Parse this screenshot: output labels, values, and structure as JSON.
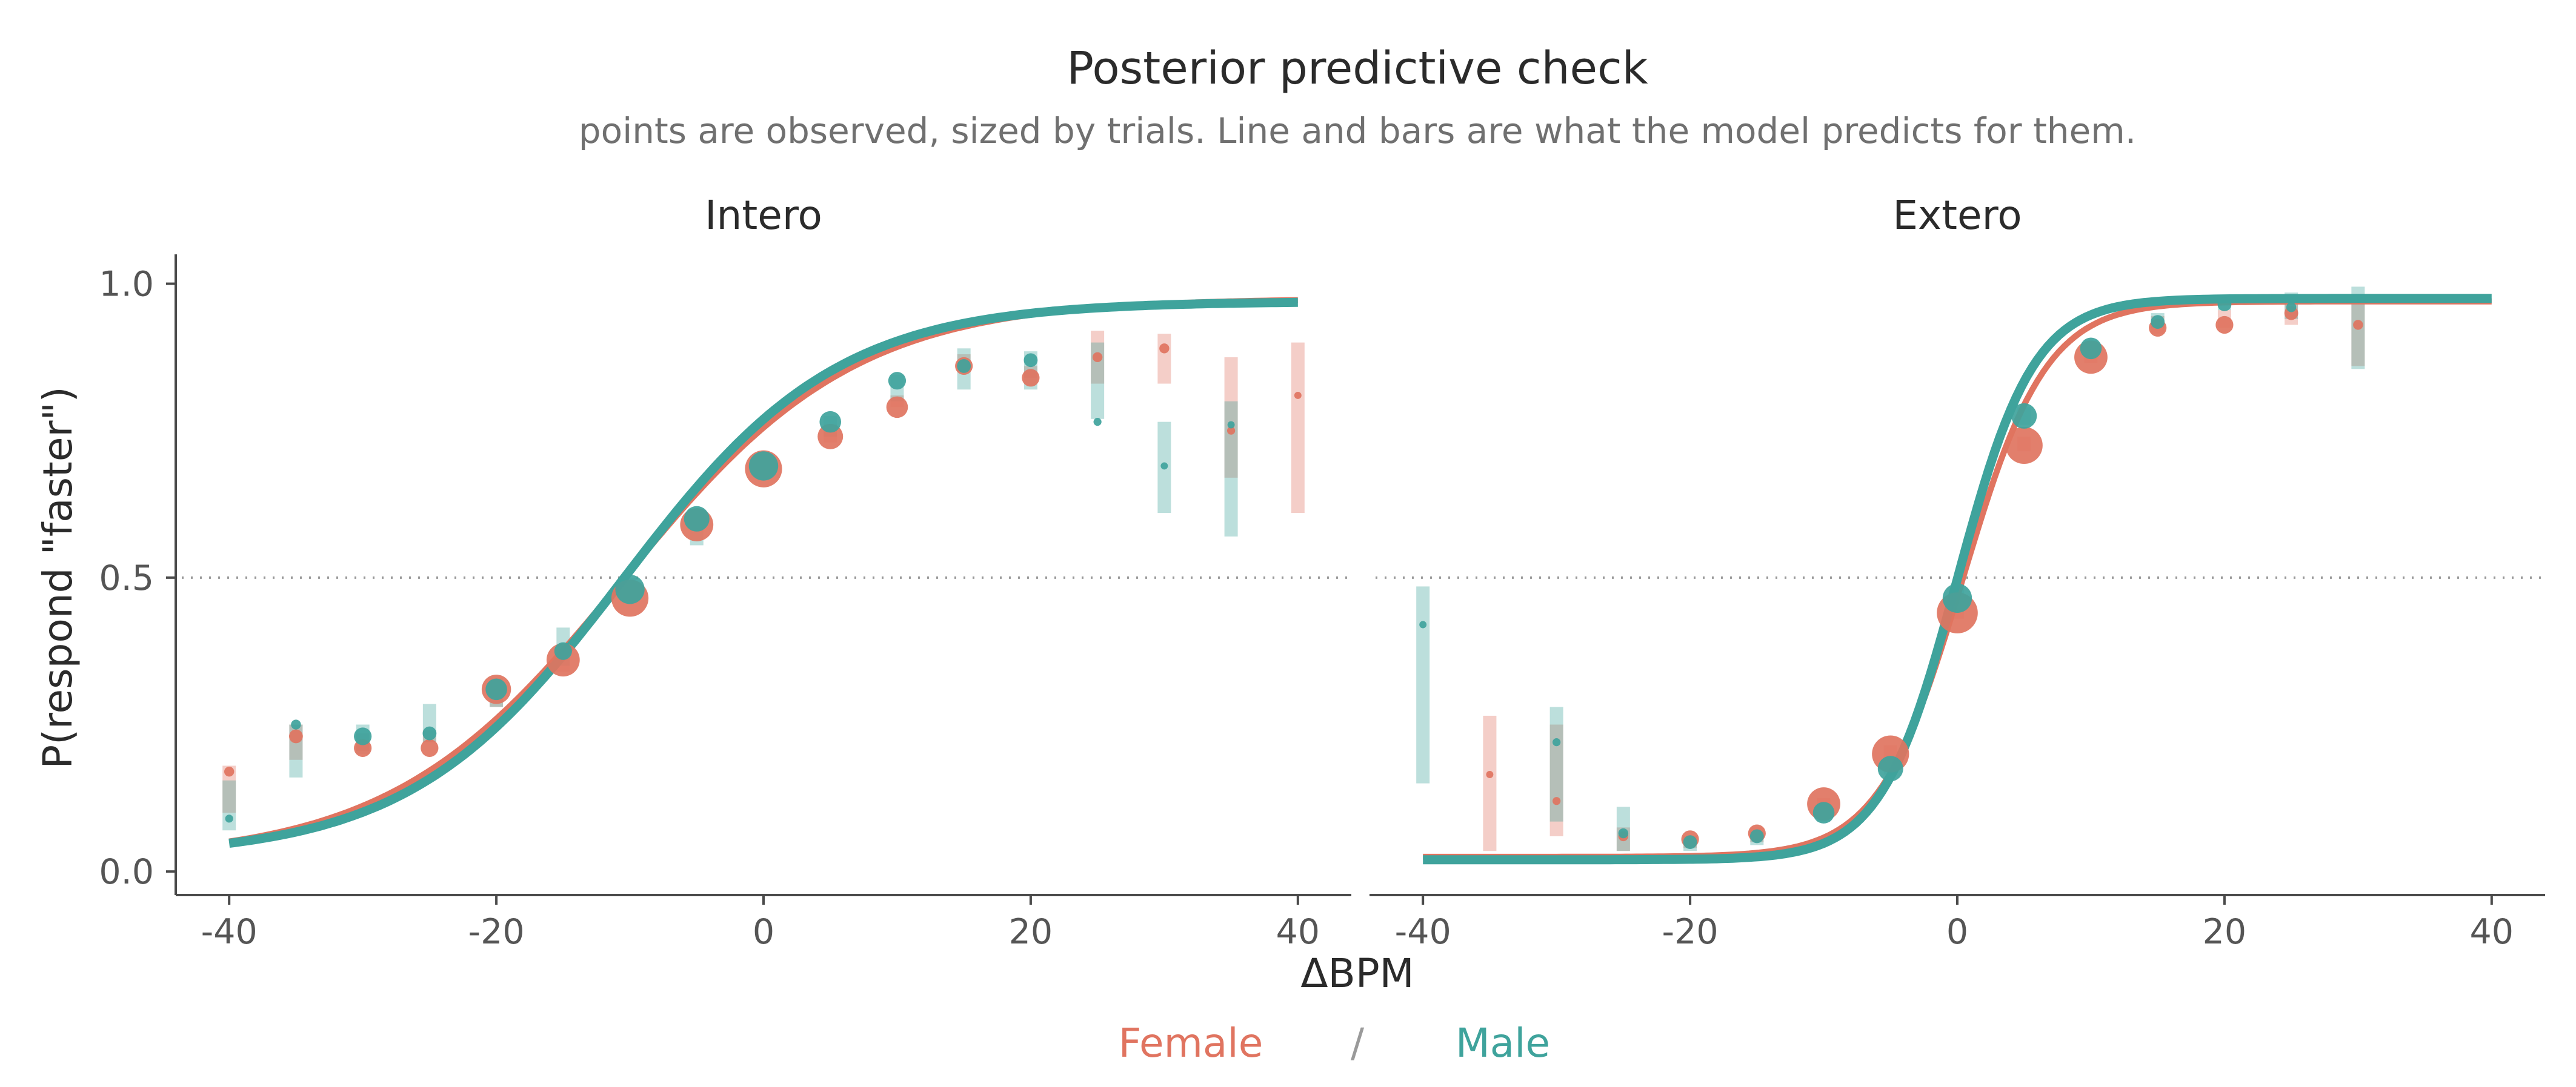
{
  "chart_data": {
    "type": "scatter",
    "title": "Posterior predictive check",
    "subtitle": "points are observed, sized by trials. Line and bars are what the model predicts for them.",
    "xlabel": "ΔBPM",
    "ylabel": "P(respond \"faster\")",
    "xlim": [
      -44,
      44
    ],
    "ylim": [
      -0.04,
      1.05
    ],
    "x_ticks": [
      -40,
      -20,
      0,
      20,
      40
    ],
    "y_ticks": [
      0.0,
      0.5,
      1.0
    ],
    "x_tick_labels": [
      "-40",
      "-20",
      "0",
      "20",
      "40"
    ],
    "y_tick_labels": [
      "0.0",
      "0.5",
      "1.0"
    ],
    "reference_line": 0.5,
    "grid": false,
    "legend": {
      "placement": "bottom",
      "separator": "/",
      "entries": [
        {
          "name": "Female",
          "color": "#E07460"
        },
        {
          "name": "Male",
          "color": "#3FA39C"
        }
      ]
    },
    "panels": [
      {
        "name": "Intero",
        "series": [
          {
            "name": "Female",
            "color": "#E07460",
            "curve": {
              "x0": -10.5,
              "slope": 0.115,
              "lower": 0.02,
              "upper": 0.975
            },
            "points": [
              {
                "x": -40,
                "y": 0.17,
                "size": 1
              },
              {
                "x": -35,
                "y": 0.23,
                "size": 2
              },
              {
                "x": -30,
                "y": 0.21,
                "size": 3
              },
              {
                "x": -25,
                "y": 0.21,
                "size": 3
              },
              {
                "x": -20,
                "y": 0.31,
                "size": 6
              },
              {
                "x": -15,
                "y": 0.36,
                "size": 7
              },
              {
                "x": -10,
                "y": 0.465,
                "size": 8
              },
              {
                "x": -5,
                "y": 0.59,
                "size": 7
              },
              {
                "x": 0,
                "y": 0.685,
                "size": 8
              },
              {
                "x": 5,
                "y": 0.74,
                "size": 5
              },
              {
                "x": 10,
                "y": 0.79,
                "size": 4
              },
              {
                "x": 15,
                "y": 0.86,
                "size": 3
              },
              {
                "x": 20,
                "y": 0.84,
                "size": 3
              },
              {
                "x": 25,
                "y": 0.875,
                "size": 1
              },
              {
                "x": 30,
                "y": 0.89,
                "size": 1
              },
              {
                "x": 35,
                "y": 0.75,
                "size": 0.5
              },
              {
                "x": 40,
                "y": 0.81,
                "size": 0.3
              }
            ],
            "intervals": [
              {
                "x": -40,
                "low": 0.1,
                "high": 0.18
              },
              {
                "x": -35,
                "low": 0.19,
                "high": 0.25
              },
              {
                "x": -30,
                "low": 0.205,
                "high": 0.235
              },
              {
                "x": -25,
                "low": 0.22,
                "high": 0.24
              },
              {
                "x": -20,
                "low": 0.28,
                "high": 0.32
              },
              {
                "x": -15,
                "low": 0.34,
                "high": 0.37
              },
              {
                "x": -10,
                "low": 0.47,
                "high": 0.49
              },
              {
                "x": -5,
                "low": 0.58,
                "high": 0.6
              },
              {
                "x": 0,
                "low": 0.68,
                "high": 0.7
              },
              {
                "x": 5,
                "low": 0.73,
                "high": 0.76
              },
              {
                "x": 10,
                "low": 0.79,
                "high": 0.81
              },
              {
                "x": 15,
                "low": 0.85,
                "high": 0.88
              },
              {
                "x": 20,
                "low": 0.84,
                "high": 0.86
              },
              {
                "x": 25,
                "low": 0.83,
                "high": 0.92
              },
              {
                "x": 30,
                "low": 0.83,
                "high": 0.915
              },
              {
                "x": 35,
                "low": 0.67,
                "high": 0.875
              },
              {
                "x": 40,
                "low": 0.61,
                "high": 0.9
              }
            ]
          },
          {
            "name": "Male",
            "color": "#3FA39C",
            "curve": {
              "x0": -10.5,
              "slope": 0.125,
              "lower": 0.025,
              "upper": 0.97
            },
            "points": [
              {
                "x": -40,
                "y": 0.09,
                "size": 0.5
              },
              {
                "x": -35,
                "y": 0.25,
                "size": 1
              },
              {
                "x": -30,
                "y": 0.23,
                "size": 3
              },
              {
                "x": -25,
                "y": 0.235,
                "size": 2
              },
              {
                "x": -20,
                "y": 0.31,
                "size": 4
              },
              {
                "x": -15,
                "y": 0.375,
                "size": 3
              },
              {
                "x": -10,
                "y": 0.48,
                "size": 6
              },
              {
                "x": -5,
                "y": 0.6,
                "size": 5
              },
              {
                "x": 0,
                "y": 0.69,
                "size": 6
              },
              {
                "x": 5,
                "y": 0.765,
                "size": 4
              },
              {
                "x": 10,
                "y": 0.835,
                "size": 3
              },
              {
                "x": 15,
                "y": 0.86,
                "size": 2
              },
              {
                "x": 20,
                "y": 0.87,
                "size": 2
              },
              {
                "x": 25,
                "y": 0.765,
                "size": 0.5
              },
              {
                "x": 30,
                "y": 0.69,
                "size": 0.3
              },
              {
                "x": 35,
                "y": 0.76,
                "size": 0.3
              }
            ],
            "intervals": [
              {
                "x": -40,
                "low": 0.07,
                "high": 0.155
              },
              {
                "x": -35,
                "low": 0.16,
                "high": 0.25
              },
              {
                "x": -30,
                "low": 0.2,
                "high": 0.25
              },
              {
                "x": -25,
                "low": 0.22,
                "high": 0.285
              },
              {
                "x": -20,
                "low": 0.28,
                "high": 0.33
              },
              {
                "x": -15,
                "low": 0.35,
                "high": 0.415
              },
              {
                "x": -10,
                "low": 0.46,
                "high": 0.5
              },
              {
                "x": -5,
                "low": 0.555,
                "high": 0.615
              },
              {
                "x": 0,
                "low": 0.68,
                "high": 0.71
              },
              {
                "x": 5,
                "low": 0.74,
                "high": 0.775
              },
              {
                "x": 10,
                "low": 0.8,
                "high": 0.845
              },
              {
                "x": 15,
                "low": 0.82,
                "high": 0.89
              },
              {
                "x": 20,
                "low": 0.82,
                "high": 0.885
              },
              {
                "x": 25,
                "low": 0.77,
                "high": 0.9
              },
              {
                "x": 30,
                "low": 0.61,
                "high": 0.765
              },
              {
                "x": 35,
                "low": 0.57,
                "high": 0.8
              }
            ]
          }
        ]
      },
      {
        "name": "Extero",
        "series": [
          {
            "name": "Female",
            "color": "#E07460",
            "curve": {
              "x0": 0.4,
              "slope": 0.32,
              "lower": 0.025,
              "upper": 0.97
            },
            "points": [
              {
                "x": -35,
                "y": 0.165,
                "size": 0.3
              },
              {
                "x": -30,
                "y": 0.12,
                "size": 0.5
              },
              {
                "x": -25,
                "y": 0.06,
                "size": 1
              },
              {
                "x": -20,
                "y": 0.055,
                "size": 3
              },
              {
                "x": -15,
                "y": 0.065,
                "size": 3
              },
              {
                "x": -10,
                "y": 0.115,
                "size": 7
              },
              {
                "x": -5,
                "y": 0.2,
                "size": 8
              },
              {
                "x": 0,
                "y": 0.44,
                "size": 9
              },
              {
                "x": 5,
                "y": 0.725,
                "size": 8
              },
              {
                "x": 10,
                "y": 0.875,
                "size": 7
              },
              {
                "x": 15,
                "y": 0.925,
                "size": 3
              },
              {
                "x": 20,
                "y": 0.93,
                "size": 3
              },
              {
                "x": 25,
                "y": 0.95,
                "size": 2
              },
              {
                "x": 30,
                "y": 0.93,
                "size": 1
              }
            ],
            "intervals": [
              {
                "x": -35,
                "low": 0.035,
                "high": 0.265
              },
              {
                "x": -30,
                "low": 0.06,
                "high": 0.25
              },
              {
                "x": -25,
                "low": 0.035,
                "high": 0.075
              },
              {
                "x": -20,
                "low": 0.04,
                "high": 0.06
              },
              {
                "x": -15,
                "low": 0.05,
                "high": 0.075
              },
              {
                "x": -10,
                "low": 0.1,
                "high": 0.125
              },
              {
                "x": -5,
                "low": 0.19,
                "high": 0.215
              },
              {
                "x": 0,
                "low": 0.43,
                "high": 0.46
              },
              {
                "x": 5,
                "low": 0.715,
                "high": 0.74
              },
              {
                "x": 10,
                "low": 0.865,
                "high": 0.89
              },
              {
                "x": 15,
                "low": 0.915,
                "high": 0.945
              },
              {
                "x": 20,
                "low": 0.925,
                "high": 0.955
              },
              {
                "x": 25,
                "low": 0.93,
                "high": 0.97
              },
              {
                "x": 30,
                "low": 0.86,
                "high": 0.98
              }
            ]
          },
          {
            "name": "Male",
            "color": "#3FA39C",
            "curve": {
              "x0": 0.0,
              "slope": 0.35,
              "lower": 0.02,
              "upper": 0.975
            },
            "points": [
              {
                "x": -40,
                "y": 0.42,
                "size": 0.3
              },
              {
                "x": -30,
                "y": 0.22,
                "size": 0.5
              },
              {
                "x": -25,
                "y": 0.065,
                "size": 1
              },
              {
                "x": -20,
                "y": 0.05,
                "size": 2
              },
              {
                "x": -15,
                "y": 0.06,
                "size": 2
              },
              {
                "x": -10,
                "y": 0.1,
                "size": 4
              },
              {
                "x": -5,
                "y": 0.175,
                "size": 5
              },
              {
                "x": 0,
                "y": 0.465,
                "size": 6
              },
              {
                "x": 5,
                "y": 0.775,
                "size": 5
              },
              {
                "x": 10,
                "y": 0.89,
                "size": 4
              },
              {
                "x": 15,
                "y": 0.935,
                "size": 2
              },
              {
                "x": 20,
                "y": 0.965,
                "size": 2
              },
              {
                "x": 25,
                "y": 0.96,
                "size": 1
              },
              {
                "x": 30,
                "y": 0.975,
                "size": 0.5
              }
            ],
            "intervals": [
              {
                "x": -40,
                "low": 0.15,
                "high": 0.485
              },
              {
                "x": -30,
                "low": 0.085,
                "high": 0.28
              },
              {
                "x": -25,
                "low": 0.035,
                "high": 0.11
              },
              {
                "x": -20,
                "low": 0.035,
                "high": 0.06
              },
              {
                "x": -15,
                "low": 0.045,
                "high": 0.07
              },
              {
                "x": -10,
                "low": 0.085,
                "high": 0.115
              },
              {
                "x": -5,
                "low": 0.165,
                "high": 0.19
              },
              {
                "x": 0,
                "low": 0.455,
                "high": 0.49
              },
              {
                "x": 5,
                "low": 0.76,
                "high": 0.79
              },
              {
                "x": 10,
                "low": 0.88,
                "high": 0.905
              },
              {
                "x": 15,
                "low": 0.925,
                "high": 0.95
              },
              {
                "x": 20,
                "low": 0.955,
                "high": 0.975
              },
              {
                "x": 25,
                "low": 0.94,
                "high": 0.985
              },
              {
                "x": 30,
                "low": 0.855,
                "high": 0.995
              }
            ]
          }
        ]
      }
    ]
  }
}
